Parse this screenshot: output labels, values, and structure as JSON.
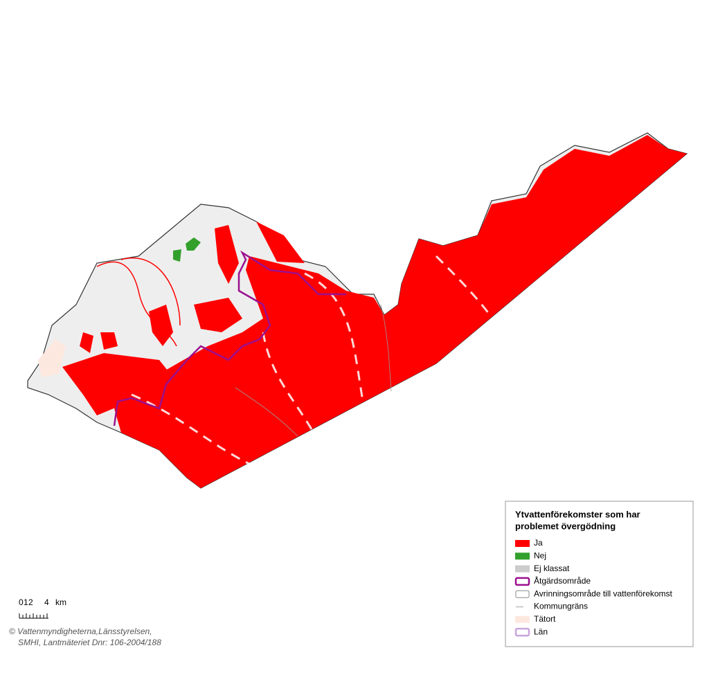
{
  "legend": {
    "title": [
      "Ytvattenförekomster som har",
      "problemet övergödning"
    ],
    "items": [
      {
        "label": "Ja",
        "kind": "fill",
        "color": "#ff0000"
      },
      {
        "label": "Nej",
        "kind": "fill",
        "color": "#33a02c"
      },
      {
        "label": "Ej klassat",
        "kind": "fill",
        "color": "#cccccc"
      },
      {
        "label": "Åtgärdsområde",
        "kind": "outline",
        "color": "#9b0f8f"
      },
      {
        "label": "Avrinningsområde till vattenförekomst",
        "kind": "outline",
        "color": "#888888"
      },
      {
        "label": "Kommungräns",
        "kind": "line",
        "color": "#cccccc"
      },
      {
        "label": "Tätort",
        "kind": "fill",
        "color": "#fde8e0"
      },
      {
        "label": "Län",
        "kind": "outline",
        "color": "#c9a4dc"
      }
    ]
  },
  "scale": {
    "labels": [
      "0",
      "1",
      "2",
      "4"
    ],
    "unit": "km"
  },
  "credits": [
    "© Vattenmyndigheterna,Länsstyrelsen,",
    "SMHI, Lantmäteriet Dnr: 106-2004/188"
  ]
}
